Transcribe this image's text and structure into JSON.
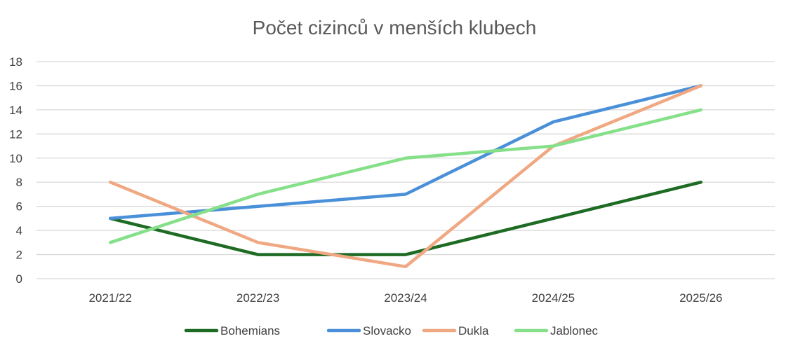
{
  "chart_data": {
    "type": "line",
    "title": "Počet cizinců v menších klubech",
    "categories": [
      "2021/22",
      "2022/23",
      "2023/24",
      "2024/25",
      "2025/26"
    ],
    "ylim": [
      0,
      18
    ],
    "yticks": [
      "0",
      "2",
      "4",
      "6",
      "8",
      "10",
      "12",
      "14",
      "16",
      "18"
    ],
    "grid": true,
    "legend_position": "bottom",
    "series": [
      {
        "name": "Bohemians",
        "color": "#1e6b24",
        "values": [
          5,
          2,
          2,
          5,
          8
        ]
      },
      {
        "name": "Slovacko",
        "color": "#4a90d9",
        "values": [
          5,
          6,
          7,
          13,
          16
        ]
      },
      {
        "name": "Dukla",
        "color": "#f0a882",
        "values": [
          8,
          3,
          1,
          11,
          16
        ]
      },
      {
        "name": "Jablonec",
        "color": "#86e08a",
        "values": [
          3,
          7,
          10,
          11,
          14
        ]
      }
    ]
  }
}
